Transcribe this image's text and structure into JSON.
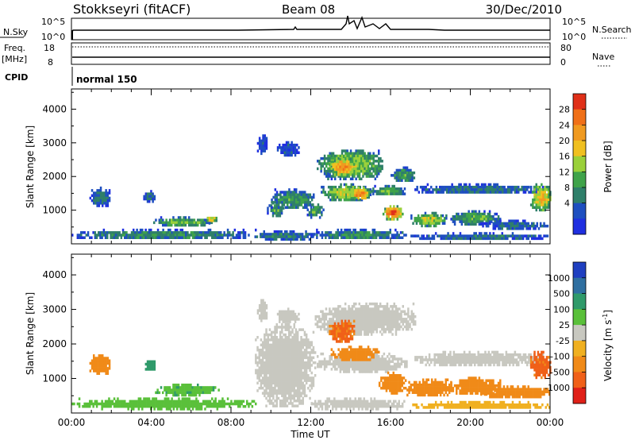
{
  "header": {
    "station": "Stokkseyri (fitACF)",
    "beam": "Beam 08",
    "date": "30/Dec/2010"
  },
  "status_panels": {
    "nsky_label": "N.Sky",
    "nsky_ticks": [
      "10^5",
      "10^0"
    ],
    "nsearch_label": "N.Search",
    "nsearch_ticks": [
      "10^5",
      "10^0"
    ],
    "freq_label": "Freq.",
    "freq_unit": "[MHz]",
    "freq_ticks": [
      "18",
      "8"
    ],
    "nave_label": "Nave",
    "nave_ticks": [
      "80",
      "0"
    ],
    "cpid_label": "CPID",
    "cpid_value": "normal 150"
  },
  "chart_data": [
    {
      "type": "heatmap",
      "name": "power",
      "xlabel": "",
      "ylabel": "Slant Range [km]",
      "xlim": [
        0,
        24
      ],
      "ylim": [
        0,
        4600
      ],
      "y_ticks": [
        "1000",
        "2000",
        "3000",
        "4000"
      ],
      "colorbar_label": "Power [dB]",
      "colorbar_ticks": [
        "4",
        "8",
        "12",
        "16",
        "20",
        "24",
        "28"
      ],
      "colorbar_colors": [
        "#1f2fe0",
        "#1e4fc0",
        "#2f7f6a",
        "#3fa34a",
        "#9ad03a",
        "#f0c020",
        "#f09a20",
        "#f07018",
        "#e03018"
      ],
      "regions": [
        {
          "t0": 0.9,
          "t1": 1.9,
          "r0": 1150,
          "r1": 1700,
          "v": 10
        },
        {
          "t0": 3.6,
          "t1": 4.2,
          "r0": 1250,
          "r1": 1600,
          "v": 9
        },
        {
          "t0": 0.0,
          "t1": 9.2,
          "r0": 150,
          "r1": 450,
          "v": 12
        },
        {
          "t0": 4.1,
          "t1": 7.0,
          "r0": 550,
          "r1": 820,
          "v": 16
        },
        {
          "t0": 6.7,
          "t1": 7.3,
          "r0": 650,
          "r1": 880,
          "v": 21
        },
        {
          "t0": 9.0,
          "t1": 12.2,
          "r0": 150,
          "r1": 400,
          "v": 11
        },
        {
          "t0": 9.3,
          "t1": 9.8,
          "r0": 2700,
          "r1": 3250,
          "v": 7
        },
        {
          "t0": 9.8,
          "t1": 10.6,
          "r0": 850,
          "r1": 1250,
          "v": 14
        },
        {
          "t0": 10.3,
          "t1": 11.4,
          "r0": 2650,
          "r1": 3050,
          "v": 8
        },
        {
          "t0": 10.0,
          "t1": 12.2,
          "r0": 1050,
          "r1": 1650,
          "v": 13
        },
        {
          "t0": 11.8,
          "t1": 12.6,
          "r0": 800,
          "r1": 1200,
          "v": 15
        },
        {
          "t0": 12.3,
          "t1": 15.6,
          "r0": 1950,
          "r1": 2800,
          "v": 17
        },
        {
          "t0": 12.9,
          "t1": 14.2,
          "r0": 2050,
          "r1": 2550,
          "v": 26
        },
        {
          "t0": 12.5,
          "t1": 15.0,
          "r0": 1300,
          "r1": 1800,
          "v": 18
        },
        {
          "t0": 14.0,
          "t1": 14.9,
          "r0": 1350,
          "r1": 1700,
          "v": 27
        },
        {
          "t0": 12.0,
          "t1": 16.8,
          "r0": 150,
          "r1": 450,
          "v": 12
        },
        {
          "t0": 15.0,
          "t1": 16.8,
          "r0": 1450,
          "r1": 1750,
          "v": 15
        },
        {
          "t0": 15.6,
          "t1": 16.6,
          "r0": 750,
          "r1": 1150,
          "v": 29
        },
        {
          "t0": 16.0,
          "t1": 17.2,
          "r0": 1850,
          "r1": 2300,
          "v": 13
        },
        {
          "t0": 17.0,
          "t1": 18.8,
          "r0": 550,
          "r1": 950,
          "v": 18
        },
        {
          "t0": 17.2,
          "t1": 23.6,
          "r0": 1500,
          "r1": 1800,
          "v": 10
        },
        {
          "t0": 19.0,
          "t1": 21.5,
          "r0": 600,
          "r1": 1000,
          "v": 14
        },
        {
          "t0": 20.5,
          "t1": 23.9,
          "r0": 450,
          "r1": 720,
          "v": 9
        },
        {
          "t0": 23.0,
          "t1": 24.0,
          "r0": 1000,
          "r1": 1800,
          "v": 22
        },
        {
          "t0": 17.0,
          "t1": 24.0,
          "r0": 150,
          "r1": 350,
          "v": 10
        }
      ]
    },
    {
      "type": "heatmap",
      "name": "velocity",
      "xlabel": "Time UT",
      "ylabel": "Slant Range [km]",
      "xlim": [
        0,
        24
      ],
      "ylim": [
        0,
        4600
      ],
      "x_ticks": [
        "00:00",
        "04:00",
        "08:00",
        "12:00",
        "16:00",
        "20:00",
        "00:00"
      ],
      "y_ticks": [
        "1000",
        "2000",
        "3000",
        "4000"
      ],
      "colorbar_label": "Velocity [m s",
      "colorbar_unit_sup": "-1",
      "colorbar_unit_close": "]",
      "colorbar_ticks": [
        "1000",
        "500",
        "100",
        "25",
        "-25",
        "-100",
        "-500",
        "-1000"
      ],
      "colorbar_colors": [
        "#1f3fc0",
        "#2f6fa0",
        "#2f9a6a",
        "#5ac03a",
        "#c8c8c0",
        "#f0b020",
        "#f08a18",
        "#f06018",
        "#e02018"
      ],
      "regions": [
        {
          "t0": 0.9,
          "t1": 1.9,
          "r0": 1150,
          "r1": 1700,
          "v": -300
        },
        {
          "t0": 3.6,
          "t1": 4.2,
          "r0": 1250,
          "r1": 1600,
          "v": 200
        },
        {
          "t0": 0.0,
          "t1": 9.2,
          "r0": 150,
          "r1": 450,
          "v": 60
        },
        {
          "t0": 4.1,
          "t1": 7.4,
          "r0": 550,
          "r1": 850,
          "v": 80
        },
        {
          "t0": 9.2,
          "t1": 12.2,
          "r0": 200,
          "r1": 2600,
          "v": 0
        },
        {
          "t0": 9.3,
          "t1": 9.8,
          "r0": 2700,
          "r1": 3300,
          "v": 0
        },
        {
          "t0": 10.3,
          "t1": 11.4,
          "r0": 2650,
          "r1": 3050,
          "v": 0
        },
        {
          "t0": 12.2,
          "t1": 17.2,
          "r0": 2300,
          "r1": 3200,
          "v": 0
        },
        {
          "t0": 12.9,
          "t1": 14.2,
          "r0": 2050,
          "r1": 2700,
          "v": -600
        },
        {
          "t0": 12.3,
          "t1": 16.8,
          "r0": 1200,
          "r1": 1750,
          "v": 0
        },
        {
          "t0": 13.0,
          "t1": 15.4,
          "r0": 1550,
          "r1": 1950,
          "v": -200
        },
        {
          "t0": 12.0,
          "t1": 16.8,
          "r0": 150,
          "r1": 450,
          "v": 0
        },
        {
          "t0": 15.4,
          "t1": 16.8,
          "r0": 600,
          "r1": 1200,
          "v": -300
        },
        {
          "t0": 16.8,
          "t1": 19.0,
          "r0": 500,
          "r1": 1000,
          "v": -250
        },
        {
          "t0": 17.2,
          "t1": 23.6,
          "r0": 1400,
          "r1": 1800,
          "v": 0
        },
        {
          "t0": 19.0,
          "t1": 21.5,
          "r0": 550,
          "r1": 1050,
          "v": -300
        },
        {
          "t0": 20.5,
          "t1": 24.0,
          "r0": 450,
          "r1": 800,
          "v": -300
        },
        {
          "t0": 23.0,
          "t1": 24.0,
          "r0": 1000,
          "r1": 1800,
          "v": -700
        },
        {
          "t0": 17.0,
          "t1": 24.0,
          "r0": 150,
          "r1": 350,
          "v": -50
        }
      ]
    }
  ]
}
